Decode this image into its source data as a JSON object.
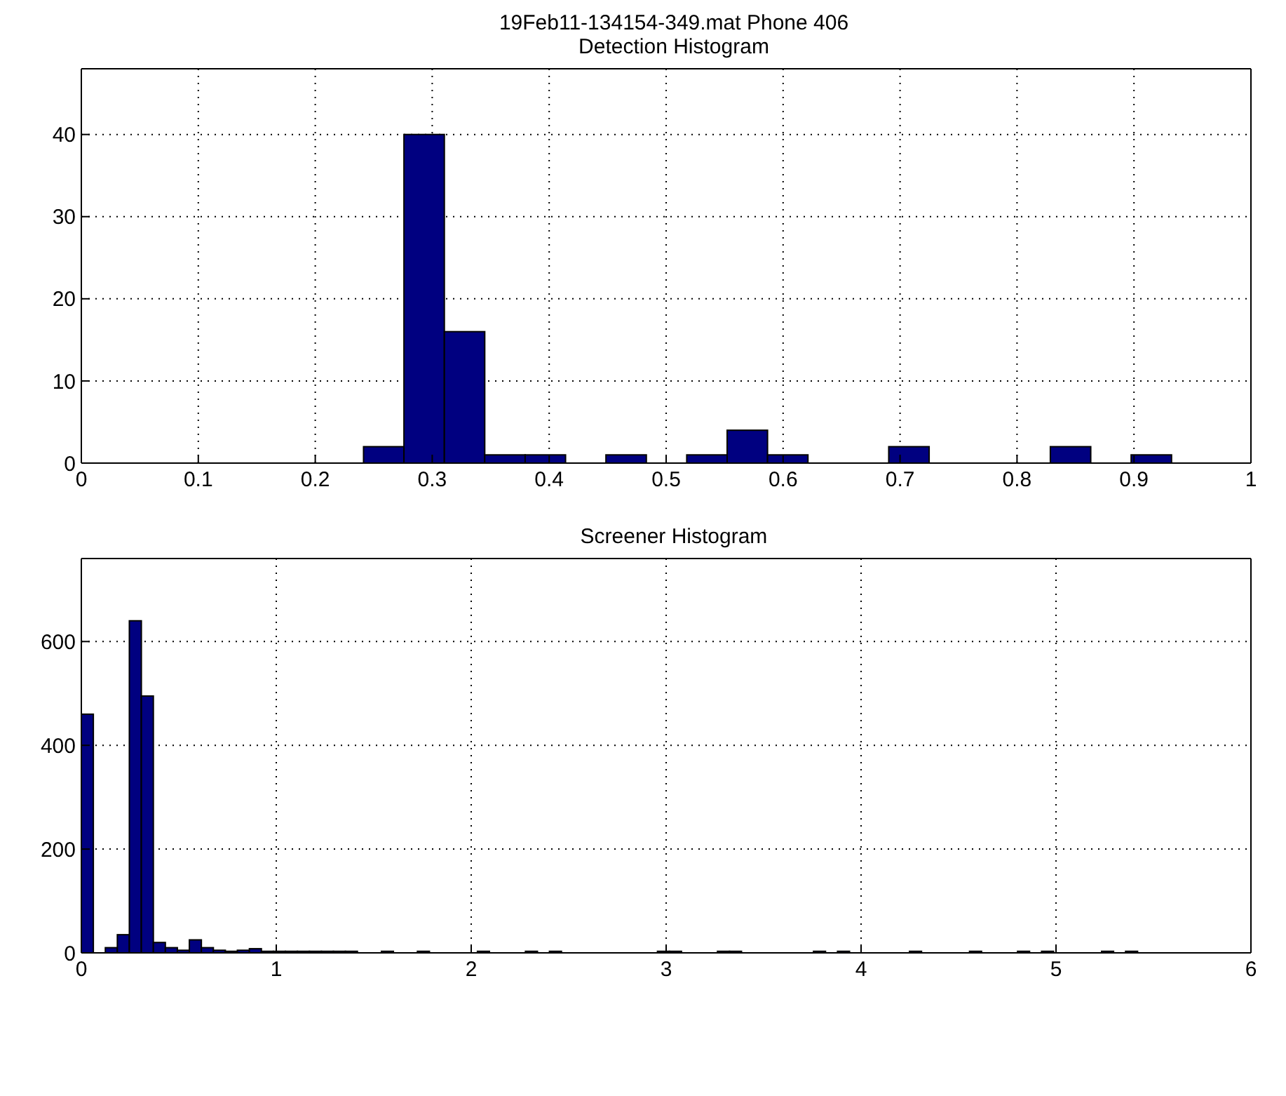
{
  "chart_data": [
    {
      "type": "histogram",
      "title": "19Feb11-134154-349.mat Phone 406",
      "subtitle": "Detection Histogram",
      "color": "#000080",
      "bins": [
        0.241,
        0.2755,
        0.31,
        0.3445,
        0.379,
        0.4135,
        0.448,
        0.4825,
        0.517,
        0.5515,
        0.586,
        0.6205,
        0.655,
        0.6895,
        0.724,
        0.7585,
        0.793,
        0.8275,
        0.862,
        0.8965,
        0.931
      ],
      "values": [
        2,
        40,
        16,
        1,
        1,
        0,
        1,
        0,
        1,
        4,
        1,
        0,
        0,
        2,
        0,
        0,
        0,
        2,
        0,
        1
      ],
      "xlim": [
        0,
        1
      ],
      "xticks": [
        0,
        0.1,
        0.2,
        0.3,
        0.4,
        0.5,
        0.6,
        0.7,
        0.8,
        0.9,
        1
      ],
      "ylim": [
        0,
        48
      ],
      "yticks": [
        0,
        10,
        20,
        30,
        40
      ],
      "grid": true
    },
    {
      "type": "histogram",
      "title": "Screener Histogram",
      "color": "#000080",
      "bins": [
        0,
        0.0615,
        0.123,
        0.1845,
        0.246,
        0.3075,
        0.369,
        0.4305,
        0.492,
        0.5535,
        0.615,
        0.6765,
        0.738,
        0.7995,
        0.861,
        0.9225,
        0.984,
        1.0455,
        1.107,
        1.1685,
        1.23,
        1.2915,
        1.353,
        1.4145,
        1.476,
        1.5375,
        1.599,
        1.6605,
        1.722,
        1.7835,
        1.845,
        1.9065,
        1.968,
        2.0295,
        2.091,
        2.1525,
        2.214,
        2.2755,
        2.337,
        2.3985,
        2.46,
        2.5215,
        2.583,
        2.6445,
        2.706,
        2.7675,
        2.829,
        2.8905,
        2.952,
        3.0135,
        3.075,
        3.1365,
        3.198,
        3.2595,
        3.321,
        3.3825,
        3.444,
        3.5055,
        3.567,
        3.6285,
        3.69,
        3.7515,
        3.813,
        3.8745,
        3.936,
        3.9975,
        4.059,
        4.1205,
        4.182,
        4.2435,
        4.305,
        4.3665,
        4.428,
        4.4895,
        4.551,
        4.6125,
        4.674,
        4.7355,
        4.797,
        4.8585,
        4.92,
        4.9815,
        5.043,
        5.1045,
        5.166,
        5.2275,
        5.289,
        5.3505,
        5.412,
        5.4735
      ],
      "values": [
        460,
        0,
        10,
        35,
        640,
        495,
        20,
        10,
        5,
        25,
        10,
        5,
        3,
        5,
        8,
        3,
        3,
        3,
        3,
        3,
        3,
        3,
        3,
        0,
        0,
        3,
        0,
        0,
        3,
        0,
        0,
        0,
        0,
        3,
        0,
        0,
        0,
        3,
        0,
        3,
        0,
        0,
        0,
        0,
        0,
        0,
        0,
        0,
        3,
        3,
        0,
        0,
        0,
        3,
        3,
        0,
        0,
        0,
        0,
        0,
        0,
        3,
        0,
        3,
        0,
        0,
        0,
        0,
        0,
        3,
        0,
        0,
        0,
        0,
        3,
        0,
        0,
        0,
        3,
        0,
        3,
        0,
        0,
        0,
        0,
        3,
        0,
        3,
        0
      ],
      "xlim": [
        0,
        6
      ],
      "xticks": [
        0,
        1,
        2,
        3,
        4,
        5,
        6
      ],
      "ylim": [
        0,
        760
      ],
      "yticks": [
        0,
        200,
        400,
        600
      ],
      "grid": true
    }
  ]
}
